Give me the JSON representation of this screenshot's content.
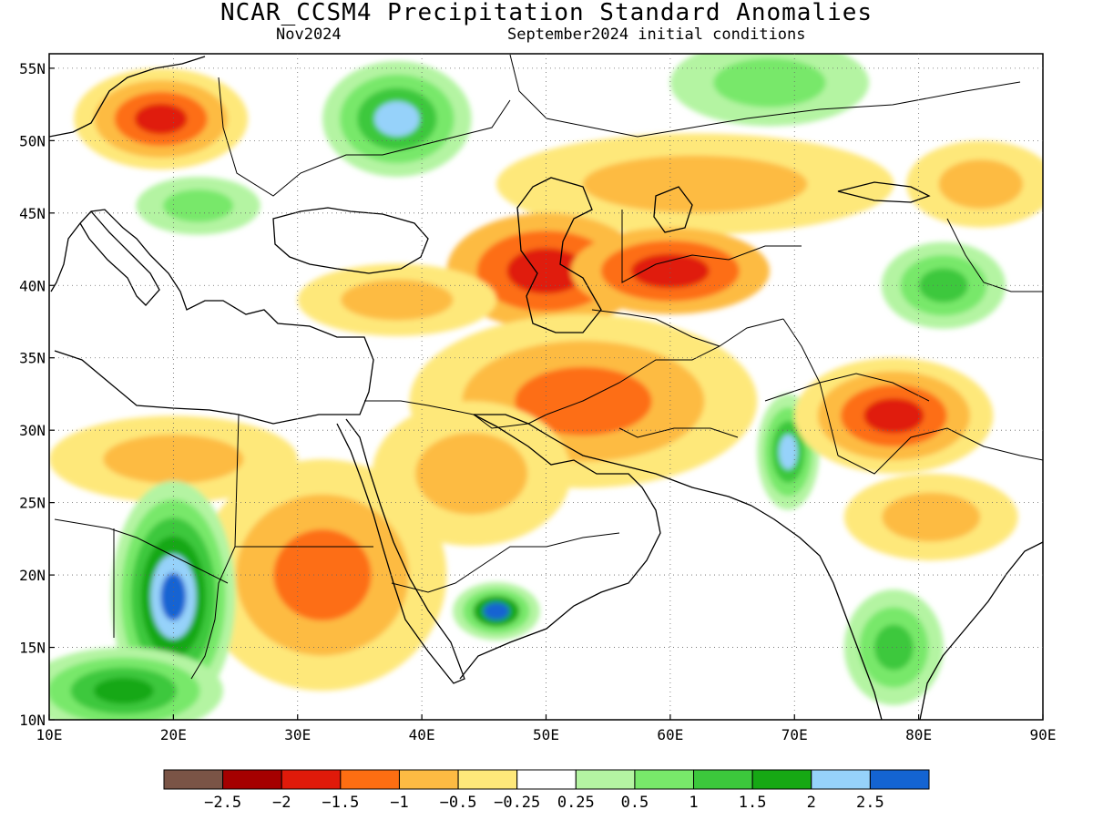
{
  "header": {
    "title": "NCAR_CCSM4 Precipitation Standard Anomalies",
    "month": "Nov2024",
    "initial_conditions": "September2024 initial conditions"
  },
  "axes": {
    "lon_range": [
      10,
      90
    ],
    "lat_range": [
      10,
      56
    ],
    "lon_ticks": [
      {
        "value": 10,
        "label": "10E"
      },
      {
        "value": 20,
        "label": "20E"
      },
      {
        "value": 30,
        "label": "30E"
      },
      {
        "value": 40,
        "label": "40E"
      },
      {
        "value": 50,
        "label": "50E"
      },
      {
        "value": 60,
        "label": "60E"
      },
      {
        "value": 70,
        "label": "70E"
      },
      {
        "value": 80,
        "label": "80E"
      },
      {
        "value": 90,
        "label": "90E"
      }
    ],
    "lat_ticks": [
      {
        "value": 10,
        "label": "10N"
      },
      {
        "value": 15,
        "label": "15N"
      },
      {
        "value": 20,
        "label": "20N"
      },
      {
        "value": 25,
        "label": "25N"
      },
      {
        "value": 30,
        "label": "30N"
      },
      {
        "value": 35,
        "label": "35N"
      },
      {
        "value": 40,
        "label": "40N"
      },
      {
        "value": 45,
        "label": "45N"
      },
      {
        "value": 50,
        "label": "50N"
      },
      {
        "value": 55,
        "label": "55N"
      }
    ],
    "grid": "dotted"
  },
  "colorbar": {
    "colors": [
      "#7a5446",
      "#a50000",
      "#e01a0a",
      "#fd6e12",
      "#fdbb43",
      "#fee87a",
      "#ffffff",
      "#b4f4a2",
      "#78e86a",
      "#3cc83c",
      "#16a814",
      "#96d2fa",
      "#1464d2"
    ],
    "labels": [
      "−2.5",
      "−2",
      "−1.5",
      "−1",
      "−0.5",
      "−0.25",
      "0.25",
      "0.5",
      "1",
      "1.5",
      "2",
      "2.5"
    ]
  },
  "anomaly_levels": {
    "-3": "#7a5446",
    "-2.5": "#a50000",
    "-2": "#e01a0a",
    "-1.5": "#fd6e12",
    "-1": "#fdbb43",
    "-0.5": "#fee87a",
    "0.5": "#b4f4a2",
    "1": "#78e86a",
    "1.5": "#3cc83c",
    "2": "#16a814",
    "2.5": "#96d2fa",
    "3": "#1464d2"
  },
  "anomaly_regions": [
    {
      "name": "central-europe-dry",
      "lon": 19,
      "lat": 51.5,
      "rx": 7,
      "ry": 3.5,
      "levels": [
        -0.5,
        -1,
        -1.5,
        -2
      ]
    },
    {
      "name": "balkans-wet",
      "lon": 22,
      "lat": 45.5,
      "rx": 5,
      "ry": 2,
      "levels": [
        0.5,
        1
      ]
    },
    {
      "name": "ukraine-wet",
      "lon": 38,
      "lat": 51.5,
      "rx": 6,
      "ry": 4,
      "levels": [
        0.5,
        1,
        1.5,
        2.5
      ]
    },
    {
      "name": "russia-north-wet",
      "lon": 68,
      "lat": 54,
      "rx": 8,
      "ry": 3,
      "levels": [
        0.5,
        1
      ]
    },
    {
      "name": "kazakhstan-dry",
      "lon": 62,
      "lat": 47,
      "rx": 16,
      "ry": 3.5,
      "levels": [
        -0.5,
        -1
      ]
    },
    {
      "name": "caspian-dry",
      "lon": 50,
      "lat": 41,
      "rx": 8,
      "ry": 4,
      "levels": [
        -1,
        -1.5,
        -2
      ]
    },
    {
      "name": "turkmenistan-dry",
      "lon": 60,
      "lat": 41,
      "rx": 8,
      "ry": 3,
      "levels": [
        -1,
        -1.5,
        -2
      ]
    },
    {
      "name": "iran-dry",
      "lon": 53,
      "lat": 32,
      "rx": 14,
      "ry": 6,
      "levels": [
        -0.5,
        -1,
        -1.5
      ]
    },
    {
      "name": "anatolia-dry",
      "lon": 38,
      "lat": 39,
      "rx": 8,
      "ry": 2.5,
      "levels": [
        -0.5,
        -1
      ]
    },
    {
      "name": "saudi-dry",
      "lon": 44,
      "lat": 27,
      "rx": 8,
      "ry": 5,
      "levels": [
        -0.5,
        -1
      ]
    },
    {
      "name": "sudan-dry",
      "lon": 32,
      "lat": 20,
      "rx": 10,
      "ry": 8,
      "levels": [
        -0.5,
        -1,
        -1.5
      ]
    },
    {
      "name": "libya-dry",
      "lon": 20,
      "lat": 28,
      "rx": 10,
      "ry": 3,
      "levels": [
        -0.5,
        -1
      ]
    },
    {
      "name": "chad-wet",
      "lon": 20,
      "lat": 18.5,
      "rx": 5,
      "ry": 8,
      "levels": [
        0.5,
        1,
        1.5,
        2,
        2.5,
        3
      ]
    },
    {
      "name": "sahel-wet",
      "lon": 16,
      "lat": 12,
      "rx": 8,
      "ry": 3,
      "levels": [
        0.5,
        1,
        1.5,
        2
      ]
    },
    {
      "name": "yemen-wet",
      "lon": 46,
      "lat": 17.5,
      "rx": 3.5,
      "ry": 2,
      "levels": [
        0.5,
        1,
        2,
        3
      ]
    },
    {
      "name": "pakistan-wet",
      "lon": 69.5,
      "lat": 28.5,
      "rx": 2.5,
      "ry": 4,
      "levels": [
        0.5,
        1,
        1.5,
        2.5
      ]
    },
    {
      "name": "north-india-dry",
      "lon": 78,
      "lat": 31,
      "rx": 8,
      "ry": 4,
      "levels": [
        -0.5,
        -1,
        -1.5,
        -2
      ]
    },
    {
      "name": "central-india-dry",
      "lon": 81,
      "lat": 24,
      "rx": 7,
      "ry": 3,
      "levels": [
        -0.5,
        -1
      ]
    },
    {
      "name": "south-india-wet",
      "lon": 78,
      "lat": 15,
      "rx": 4,
      "ry": 4,
      "levels": [
        0.5,
        1,
        1.5
      ]
    },
    {
      "name": "tarim-wet",
      "lon": 82,
      "lat": 40,
      "rx": 5,
      "ry": 3,
      "levels": [
        0.5,
        1,
        1.5
      ]
    },
    {
      "name": "mongolia-dry",
      "lon": 85,
      "lat": 47,
      "rx": 6,
      "ry": 3,
      "levels": [
        -0.5,
        -1
      ]
    }
  ]
}
